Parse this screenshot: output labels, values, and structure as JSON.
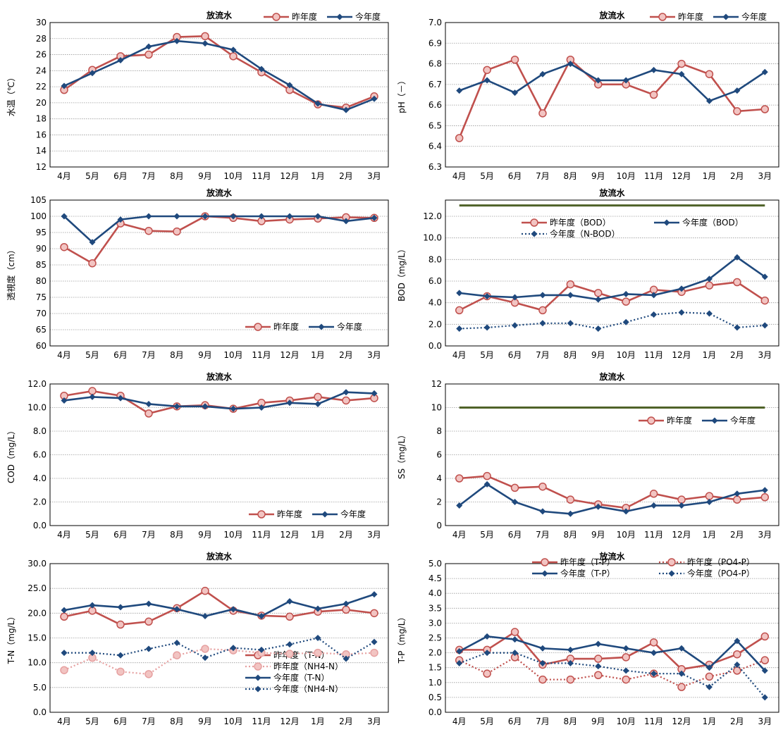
{
  "months": [
    "4月",
    "5月",
    "6月",
    "7月",
    "8月",
    "9月",
    "10月",
    "11月",
    "12月",
    "1月",
    "2月",
    "3月"
  ],
  "chart_data": [
    {
      "id": "water-temperature",
      "type": "line",
      "title": "放流水",
      "ylabel": "水温（℃）",
      "ylim": [
        12,
        30
      ],
      "yticks": [
        "12",
        "14",
        "16",
        "18",
        "20",
        "22",
        "24",
        "26",
        "28",
        "30"
      ],
      "grid": true,
      "legend_position": "top-right",
      "series": [
        {
          "name": "昨年度",
          "color": "#c0504d",
          "style": "solid",
          "marker": "circle",
          "values": [
            21.6,
            24.1,
            25.8,
            26.0,
            28.2,
            28.3,
            25.8,
            23.8,
            21.6,
            19.8,
            19.4,
            20.8
          ]
        },
        {
          "name": "今年度",
          "color": "#1f497d",
          "style": "solid",
          "marker": "diamond",
          "values": [
            22.1,
            23.7,
            25.3,
            27.0,
            27.7,
            27.4,
            26.6,
            24.2,
            22.2,
            19.9,
            19.1,
            20.5
          ]
        }
      ]
    },
    {
      "id": "ph",
      "type": "line",
      "title": "放流水",
      "ylabel": "pH（－）",
      "ylim": [
        6.3,
        7.0
      ],
      "yticks": [
        "6.3",
        "6.4",
        "6.5",
        "6.6",
        "6.7",
        "6.8",
        "6.9",
        "7.0"
      ],
      "grid": true,
      "legend_position": "top-right",
      "series": [
        {
          "name": "昨年度",
          "color": "#c0504d",
          "style": "solid",
          "marker": "circle",
          "values": [
            6.44,
            6.77,
            6.82,
            6.56,
            6.82,
            6.7,
            6.7,
            6.65,
            6.8,
            6.75,
            6.57,
            6.58
          ]
        },
        {
          "name": "今年度",
          "color": "#1f497d",
          "style": "solid",
          "marker": "diamond",
          "values": [
            6.67,
            6.72,
            6.66,
            6.75,
            6.8,
            6.72,
            6.72,
            6.77,
            6.75,
            6.62,
            6.67,
            6.76
          ]
        }
      ]
    },
    {
      "id": "transparency",
      "type": "line",
      "title": "放流水",
      "ylabel": "透視度（cm）",
      "ylim": [
        60,
        105
      ],
      "yticks": [
        "60",
        "65",
        "70",
        "75",
        "80",
        "85",
        "90",
        "95",
        "100",
        "105"
      ],
      "grid": true,
      "legend_position": "bottom-right",
      "series": [
        {
          "name": "昨年度",
          "color": "#c0504d",
          "style": "solid",
          "marker": "circle",
          "values": [
            90.5,
            85.5,
            97.8,
            95.5,
            95.3,
            100,
            99.5,
            98.5,
            99.0,
            99.3,
            99.7,
            99.5
          ]
        },
        {
          "name": "今年度",
          "color": "#1f497d",
          "style": "solid",
          "marker": "diamond",
          "values": [
            100,
            92,
            99,
            100,
            100,
            100,
            100,
            100,
            100,
            100,
            98.5,
            99.5
          ]
        }
      ]
    },
    {
      "id": "bod",
      "type": "line",
      "title": "放流水",
      "ylabel": "BOD（mg/L）",
      "ylim": [
        0,
        13.5
      ],
      "yticks": [
        "0.0",
        "2.0",
        "4.0",
        "6.0",
        "8.0",
        "10.0",
        "12.0"
      ],
      "grid": true,
      "reference_line": {
        "value": 13.0,
        "color": "#4f6228"
      },
      "legend_position": "upper-center",
      "series": [
        {
          "name": "昨年度（BOD）",
          "color": "#c0504d",
          "style": "solid",
          "marker": "circle",
          "values": [
            3.3,
            4.6,
            4.0,
            3.3,
            5.7,
            4.9,
            4.1,
            5.2,
            5.0,
            5.6,
            5.9,
            4.2
          ]
        },
        {
          "name": "今年度（BOD）",
          "color": "#1f497d",
          "style": "solid",
          "marker": "diamond",
          "values": [
            4.9,
            4.6,
            4.5,
            4.7,
            4.7,
            4.3,
            4.8,
            4.7,
            5.3,
            6.2,
            8.2,
            6.4
          ]
        },
        {
          "name": "今年度（N-BOD）",
          "color": "#1f497d",
          "style": "dotted",
          "marker": "diamond",
          "values": [
            1.6,
            1.7,
            1.9,
            2.1,
            2.1,
            1.6,
            2.2,
            2.9,
            3.1,
            3.0,
            1.7,
            1.9
          ]
        }
      ]
    },
    {
      "id": "cod",
      "type": "line",
      "title": "放流水",
      "ylabel": "COD（mg/L）",
      "ylim": [
        0,
        12
      ],
      "yticks": [
        "0.0",
        "2.0",
        "4.0",
        "6.0",
        "8.0",
        "10.0",
        "12.0"
      ],
      "grid": true,
      "legend_position": "bottom-right",
      "series": [
        {
          "name": "昨年度",
          "color": "#c0504d",
          "style": "solid",
          "marker": "circle",
          "values": [
            11.0,
            11.4,
            11.0,
            9.5,
            10.1,
            10.2,
            9.9,
            10.4,
            10.6,
            10.9,
            10.6,
            10.8
          ]
        },
        {
          "name": "今年度",
          "color": "#1f497d",
          "style": "solid",
          "marker": "diamond",
          "values": [
            10.6,
            10.9,
            10.8,
            10.3,
            10.1,
            10.1,
            9.9,
            10.0,
            10.4,
            10.3,
            11.3,
            11.2
          ]
        }
      ]
    },
    {
      "id": "ss",
      "type": "line",
      "title": "放流水",
      "ylabel": "SS（mg/L）",
      "ylim": [
        0,
        12
      ],
      "yticks": [
        "0",
        "2",
        "4",
        "6",
        "8",
        "10",
        "12"
      ],
      "grid": true,
      "reference_line": {
        "value": 10,
        "color": "#4f6228"
      },
      "legend_position": "top-right",
      "series": [
        {
          "name": "昨年度",
          "color": "#c0504d",
          "style": "solid",
          "marker": "circle",
          "values": [
            4.0,
            4.2,
            3.2,
            3.3,
            2.2,
            1.8,
            1.5,
            2.7,
            2.2,
            2.5,
            2.2,
            2.4
          ]
        },
        {
          "name": "今年度",
          "color": "#1f497d",
          "style": "solid",
          "marker": "diamond",
          "values": [
            1.7,
            3.5,
            2.0,
            1.2,
            1.0,
            1.6,
            1.2,
            1.7,
            1.7,
            2.0,
            2.7,
            3.0
          ]
        }
      ]
    },
    {
      "id": "total-nitrogen",
      "type": "line",
      "title": "放流水",
      "ylabel": "T-N（mg/L）",
      "ylim": [
        0,
        30
      ],
      "yticks": [
        "0.0",
        "5.0",
        "10.0",
        "15.0",
        "20.0",
        "25.0",
        "30.0"
      ],
      "grid": true,
      "legend_position": "bottom-right",
      "series": [
        {
          "name": "昨年度（T-N）",
          "color": "#c0504d",
          "style": "solid",
          "marker": "circle",
          "values": [
            19.3,
            20.5,
            17.7,
            18.3,
            21.0,
            24.5,
            20.5,
            19.5,
            19.3,
            20.3,
            20.7,
            20.0
          ]
        },
        {
          "name": "昨年度（NH4-N）",
          "color": "#e6a0a0",
          "style": "dotted",
          "marker": "circle",
          "values": [
            8.5,
            11.0,
            8.2,
            7.7,
            11.5,
            12.8,
            12.5,
            12.0,
            11.8,
            12.0,
            11.7,
            12.0
          ]
        },
        {
          "name": "今年度（T-N）",
          "color": "#1f497d",
          "style": "solid",
          "marker": "diamond",
          "values": [
            20.6,
            21.6,
            21.2,
            21.9,
            20.8,
            19.4,
            20.8,
            19.4,
            22.4,
            20.9,
            21.9,
            23.8
          ]
        },
        {
          "name": "今年度（NH4-N）",
          "color": "#1f497d",
          "style": "dotted",
          "marker": "diamond",
          "values": [
            12.0,
            12.0,
            11.5,
            12.8,
            14.0,
            11.0,
            13.0,
            12.6,
            13.7,
            15.0,
            10.8,
            14.2
          ]
        }
      ]
    },
    {
      "id": "total-phosphorus",
      "type": "line",
      "title": "放流水",
      "ylabel": "T-P（mg/L）",
      "ylim": [
        0,
        5
      ],
      "yticks": [
        "0.0",
        "0.5",
        "1.0",
        "1.5",
        "2.0",
        "2.5",
        "3.0",
        "3.5",
        "4.0",
        "4.5",
        "5.0"
      ],
      "grid": true,
      "legend_position": "top",
      "series": [
        {
          "name": "昨年度（T-P）",
          "color": "#c0504d",
          "style": "solid",
          "marker": "circle",
          "values": [
            2.1,
            2.1,
            2.7,
            1.6,
            1.8,
            1.8,
            1.85,
            2.35,
            1.45,
            1.6,
            1.95,
            2.55
          ]
        },
        {
          "name": "昨年度（PO4-P）",
          "color": "#c0504d",
          "style": "dotted",
          "marker": "circle",
          "values": [
            1.75,
            1.3,
            1.85,
            1.1,
            1.1,
            1.25,
            1.1,
            1.3,
            0.85,
            1.2,
            1.4,
            1.75
          ]
        },
        {
          "name": "今年度（T-P）",
          "color": "#1f497d",
          "style": "solid",
          "marker": "diamond",
          "values": [
            2.05,
            2.55,
            2.45,
            2.15,
            2.1,
            2.3,
            2.15,
            2.0,
            2.15,
            1.5,
            2.4,
            1.4
          ]
        },
        {
          "name": "今年度（PO4-P）",
          "color": "#1f497d",
          "style": "dotted",
          "marker": "diamond",
          "values": [
            1.65,
            2.0,
            2.0,
            1.65,
            1.65,
            1.55,
            1.4,
            1.3,
            1.3,
            0.85,
            1.6,
            0.5
          ]
        }
      ]
    }
  ]
}
